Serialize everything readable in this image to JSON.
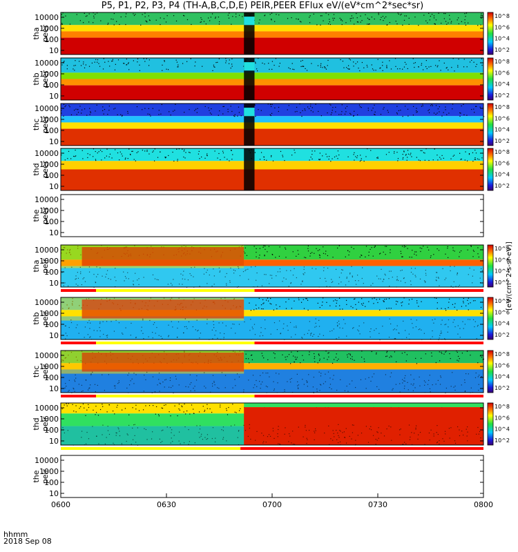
{
  "title": "P5, P1, P2, P3, P4 (TH-A,B,C,D,E) PEIR,PEER EFlux eV/(eV*cm^2*sec*sr)",
  "colorbar_label": "[eV/(cm^2-s-sr-eV)]",
  "colorbar_ticks": [
    "10^8",
    "10^6",
    "10^4",
    "10^2"
  ],
  "time_label_line1": "hhmm",
  "time_label_line2": "2018 Sep 08",
  "chart_data": {
    "type": "heatmap",
    "x_ticks": [
      "0600",
      "0630",
      "0700",
      "0730",
      "0800"
    ],
    "x_range": [
      "0600",
      "0800"
    ],
    "y_scale": "log",
    "y_ticks": [
      "10000",
      "1000",
      "100",
      "10"
    ],
    "panels": [
      {
        "probe": "tha",
        "quantity": "peer",
        "has_data": true,
        "colorbar": true
      },
      {
        "probe": "thb",
        "quantity": "peer",
        "has_data": true,
        "colorbar": true
      },
      {
        "probe": "thc",
        "quantity": "peer",
        "has_data": true,
        "colorbar": true
      },
      {
        "probe": "thd",
        "quantity": "peer",
        "has_data": true,
        "colorbar": true
      },
      {
        "probe": "the",
        "quantity": "peer",
        "has_data": false,
        "colorbar": false
      },
      {
        "probe": "tha",
        "quantity": "peir",
        "has_data": true,
        "colorbar": true
      },
      {
        "probe": "thb",
        "quantity": "peir",
        "has_data": true,
        "colorbar": true
      },
      {
        "probe": "thc",
        "quantity": "peir",
        "has_data": true,
        "colorbar": true
      },
      {
        "probe": "thd",
        "quantity": "peir",
        "has_data": true,
        "colorbar": true
      },
      {
        "probe": "the",
        "quantity": "peir",
        "has_data": false,
        "colorbar": false
      }
    ]
  }
}
